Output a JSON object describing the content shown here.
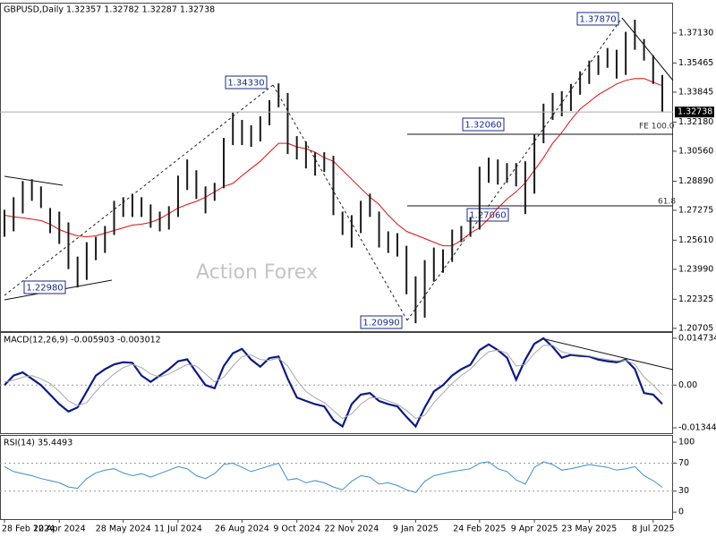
{
  "chart_data": [
    {
      "type": "ohlc",
      "title": "GBPUSD,Daily  1.32357 1.32782 1.32287 1.32738",
      "watermark": "Action Forex",
      "ylim": [
        1.2055,
        1.3872
      ],
      "yticks": [
        {
          "value": 1.3713,
          "label": "1.37130"
        },
        1.35465,
        1.33845,
        {
          "value": 1.3218,
          "label": "1.32180"
        },
        {
          "value": 1.3056,
          "label": "1.30560"
        },
        {
          "value": 1.2889,
          "label": "1.28890"
        },
        1.27275,
        {
          "value": 1.2561,
          "label": "1.25610"
        },
        {
          "value": 1.2399,
          "label": "1.23990"
        },
        1.22325,
        1.20705
      ],
      "last_price": 1.32738,
      "bar_color": "#1a1a1a",
      "high": [
        1.273,
        1.28,
        1.289,
        1.29,
        1.286,
        1.274,
        1.272,
        1.266,
        1.247,
        1.255,
        1.258,
        1.264,
        1.278,
        1.28,
        1.282,
        1.28,
        1.276,
        1.272,
        1.275,
        1.292,
        1.301,
        1.295,
        1.286,
        1.288,
        1.313,
        1.327,
        1.323,
        1.32,
        1.325,
        1.334,
        1.3433,
        1.338,
        1.314,
        1.311,
        1.305,
        1.305,
        1.303,
        1.272,
        1.27,
        1.278,
        1.282,
        1.272,
        1.261,
        1.26,
        1.253,
        1.236,
        1.245,
        1.252,
        1.251,
        1.262,
        1.264,
        1.269,
        1.297,
        1.302,
        1.301,
        1.299,
        1.299,
        1.3,
        1.315,
        1.332,
        1.338,
        1.339,
        1.343,
        1.35,
        1.356,
        1.359,
        1.363,
        1.362,
        1.372,
        1.3787,
        1.368,
        1.359,
        1.348
      ],
      "low": [
        1.258,
        1.261,
        1.271,
        1.278,
        1.274,
        1.26,
        1.254,
        1.24,
        1.2298,
        1.234,
        1.245,
        1.249,
        1.259,
        1.269,
        1.269,
        1.269,
        1.263,
        1.261,
        1.262,
        1.269,
        1.284,
        1.279,
        1.271,
        1.278,
        1.285,
        1.309,
        1.309,
        1.308,
        1.311,
        1.32,
        1.33,
        1.304,
        1.301,
        1.296,
        1.292,
        1.294,
        1.27,
        1.259,
        1.252,
        1.26,
        1.269,
        1.252,
        1.249,
        1.247,
        1.226,
        1.2099,
        1.213,
        1.233,
        1.238,
        1.244,
        1.255,
        1.258,
        1.262,
        1.288,
        1.287,
        1.288,
        1.286,
        1.2706,
        1.282,
        1.31,
        1.323,
        1.325,
        1.328,
        1.337,
        1.343,
        1.348,
        1.352,
        1.346,
        1.348,
        1.362,
        1.356,
        1.343,
        1.3274
      ],
      "ma": {
        "color": "#e01010",
        "values": [
          1.27,
          1.269,
          1.2685,
          1.2678,
          1.267,
          1.265,
          1.262,
          1.26,
          1.2585,
          1.258,
          1.2585,
          1.26,
          1.2615,
          1.263,
          1.2645,
          1.265,
          1.266,
          1.268,
          1.271,
          1.274,
          1.276,
          1.2777,
          1.28,
          1.283,
          1.286,
          1.2877,
          1.292,
          1.296,
          1.3,
          1.305,
          1.31,
          1.31,
          1.308,
          1.307,
          1.305,
          1.302,
          1.3,
          1.295,
          1.29,
          1.285,
          1.28,
          1.276,
          1.27,
          1.265,
          1.261,
          1.259,
          1.257,
          1.255,
          1.253,
          1.253,
          1.256,
          1.26,
          1.263,
          1.268,
          1.274,
          1.279,
          1.283,
          1.288,
          1.295,
          1.302,
          1.31,
          1.316,
          1.323,
          1.329,
          1.333,
          1.337,
          1.34,
          1.343,
          1.345,
          1.346,
          1.346,
          1.344,
          1.342
        ]
      },
      "annotations": [
        "1.37870",
        "1.34330",
        "1.32060",
        "1.27060",
        "1.22980",
        "1.20990",
        "FE 100.0",
        "61.8"
      ]
    },
    {
      "type": "line",
      "title": "MACD(12,26,9) -0.005903 -0.003012",
      "ylim": [
        -0.0154,
        0.0164
      ],
      "yticks": [
        0.014734,
        {
          "value": 0,
          "label": "0.00"
        },
        -0.013442
      ],
      "grid_lines": [
        0
      ],
      "series": [
        {
          "color": "#0a1a8a",
          "values": [
            0.0,
            0.003,
            0.004,
            0.002,
            0.0,
            -0.003,
            -0.006,
            -0.0083,
            -0.007,
            -0.002,
            0.003,
            0.005,
            0.0065,
            0.0072,
            0.007,
            0.003,
            0.001,
            0.003,
            0.005,
            0.0075,
            0.0081,
            0.004,
            0.0,
            -0.001,
            0.006,
            0.01,
            0.0114,
            0.008,
            0.0058,
            0.0085,
            0.009,
            0.002,
            -0.0039,
            -0.005,
            -0.006,
            -0.0067,
            -0.011,
            -0.013,
            -0.006,
            -0.003,
            -0.0025,
            -0.005,
            -0.006,
            -0.0067,
            -0.01,
            -0.013,
            -0.007,
            -0.002,
            0.0,
            0.003,
            0.005,
            0.0064,
            0.011,
            0.0128,
            0.011,
            0.0086,
            0.0017,
            0.008,
            0.013,
            0.0147,
            0.012,
            0.0086,
            0.0095,
            0.0092,
            0.009,
            0.008,
            0.0075,
            0.0072,
            0.008,
            0.005,
            -0.0025,
            -0.003,
            -0.005903
          ]
        },
        {
          "color": "#a8a8a8",
          "values": [
            0.001,
            0.0015,
            0.0025,
            0.003,
            0.002,
            0.0005,
            -0.002,
            -0.005,
            -0.0065,
            -0.0055,
            -0.002,
            0.001,
            0.0035,
            0.0055,
            0.0065,
            0.0055,
            0.0035,
            0.0025,
            0.0035,
            0.005,
            0.0065,
            0.006,
            0.0035,
            0.001,
            0.0025,
            0.006,
            0.009,
            0.0095,
            0.008,
            0.0078,
            0.0085,
            0.006,
            0.0015,
            -0.002,
            -0.004,
            -0.0055,
            -0.008,
            -0.0105,
            -0.009,
            -0.006,
            -0.004,
            -0.004,
            -0.005,
            -0.006,
            -0.008,
            -0.0105,
            -0.0095,
            -0.0055,
            -0.0025,
            0.0005,
            0.003,
            0.005,
            0.008,
            0.0105,
            0.011,
            0.01,
            0.006,
            0.0065,
            0.01,
            0.0125,
            0.0125,
            0.0105,
            0.0098,
            0.0095,
            0.0092,
            0.0085,
            0.008,
            0.0076,
            0.0078,
            0.0065,
            0.0025,
            0.0,
            -0.003012
          ]
        }
      ]
    },
    {
      "type": "line",
      "title": "RSI(14) 35.4493",
      "ylim": [
        -10,
        109
      ],
      "yticks": [
        100,
        70,
        30,
        0
      ],
      "grid_lines": [
        70,
        30
      ],
      "categories": [
        "28 Feb 2024",
        null,
        null,
        null,
        null,
        null,
        "12 Apr 2024",
        null,
        null,
        null,
        null,
        null,
        null,
        "28 May 2024",
        null,
        null,
        null,
        null,
        null,
        "11 Jul 2024",
        null,
        null,
        null,
        null,
        null,
        null,
        "26 Aug 2024",
        null,
        null,
        null,
        null,
        null,
        "9 Oct 2024",
        null,
        null,
        null,
        null,
        null,
        "22 Nov 2024",
        null,
        null,
        null,
        null,
        null,
        null,
        "9 Jan 2025",
        null,
        null,
        null,
        null,
        null,
        null,
        "24 Feb 2025",
        null,
        null,
        null,
        null,
        null,
        "9 Apr 2025",
        null,
        null,
        null,
        null,
        null,
        "23 May 2025",
        null,
        null,
        null,
        null,
        null,
        null,
        "8 Jul 2025",
        null
      ],
      "series": [
        {
          "color": "#3a8fd0",
          "values": [
            65,
            58,
            55,
            52,
            48,
            45,
            42,
            36,
            34,
            48,
            56,
            60,
            62,
            56,
            52,
            55,
            50,
            55,
            60,
            65,
            62,
            52,
            48,
            55,
            68,
            70,
            64,
            58,
            62,
            66,
            70,
            46,
            48,
            42,
            45,
            42,
            36,
            32,
            44,
            52,
            50,
            40,
            42,
            38,
            32,
            28,
            44,
            52,
            55,
            58,
            60,
            62,
            70,
            72,
            62,
            58,
            46,
            40,
            64,
            72,
            68,
            60,
            62,
            65,
            68,
            66,
            64,
            60,
            62,
            65,
            52,
            45,
            35.4493
          ]
        }
      ]
    }
  ]
}
